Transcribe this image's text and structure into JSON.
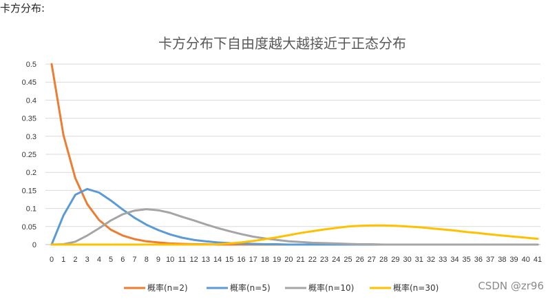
{
  "page": {
    "heading": "卡方分布:",
    "watermark": "CSDN @zr96"
  },
  "chart_data": {
    "type": "line",
    "title": "卡方分布下自由度越大越接近于正态分布",
    "xlabel": "",
    "ylabel": "",
    "x": [
      0,
      1,
      2,
      3,
      4,
      5,
      6,
      7,
      8,
      9,
      10,
      11,
      12,
      13,
      14,
      15,
      16,
      17,
      18,
      19,
      20,
      21,
      22,
      23,
      24,
      25,
      26,
      27,
      28,
      29,
      30,
      31,
      32,
      33,
      34,
      35,
      36,
      37,
      38,
      39,
      40,
      41
    ],
    "ylim": [
      0,
      0.5
    ],
    "yticks": [
      "0",
      "0.05",
      "0.1",
      "0.15",
      "0.2",
      "0.25",
      "0.3",
      "0.35",
      "0.4",
      "0.45",
      "0.5"
    ],
    "grid": true,
    "legend_position": "bottom",
    "series": [
      {
        "name": "概率(n=2)",
        "color": "#ED7D31",
        "values": [
          0.5,
          0.303,
          0.184,
          0.112,
          0.068,
          0.041,
          0.025,
          0.015,
          0.009,
          0.006,
          0.003,
          0.002,
          0.001,
          0.001,
          0,
          0,
          0,
          0,
          0,
          0,
          0,
          0,
          0,
          0,
          0,
          0,
          0,
          0,
          0,
          0,
          0,
          0,
          0,
          0,
          0,
          0,
          0,
          0,
          0,
          0,
          0,
          0
        ]
      },
      {
        "name": "概率(n=5)",
        "color": "#5B9BD5",
        "values": [
          0,
          0.081,
          0.138,
          0.154,
          0.144,
          0.122,
          0.097,
          0.074,
          0.055,
          0.04,
          0.028,
          0.019,
          0.013,
          0.009,
          0.006,
          0.004,
          0.003,
          0.002,
          0.001,
          0.001,
          0,
          0,
          0,
          0,
          0,
          0,
          0,
          0,
          0,
          0,
          0,
          0,
          0,
          0,
          0,
          0,
          0,
          0,
          0,
          0,
          0,
          0
        ]
      },
      {
        "name": "概率(n=10)",
        "color": "#A5A5A5",
        "values": [
          0,
          0.001,
          0.008,
          0.025,
          0.045,
          0.067,
          0.084,
          0.094,
          0.098,
          0.095,
          0.088,
          0.077,
          0.067,
          0.056,
          0.046,
          0.037,
          0.029,
          0.022,
          0.017,
          0.013,
          0.009,
          0.007,
          0.005,
          0.004,
          0.003,
          0.002,
          0.001,
          0.001,
          0,
          0,
          0,
          0,
          0,
          0,
          0,
          0,
          0,
          0,
          0,
          0,
          0,
          0
        ]
      },
      {
        "name": "概率(n=30)",
        "color": "#FFC000",
        "values": [
          0,
          0,
          0,
          0,
          0,
          0,
          0,
          0,
          0,
          0,
          0,
          0,
          0,
          0,
          0.001,
          0.003,
          0.006,
          0.01,
          0.015,
          0.02,
          0.026,
          0.032,
          0.037,
          0.042,
          0.046,
          0.05,
          0.052,
          0.053,
          0.053,
          0.052,
          0.05,
          0.048,
          0.045,
          0.042,
          0.039,
          0.035,
          0.032,
          0.028,
          0.025,
          0.022,
          0.019,
          0.016
        ]
      }
    ]
  }
}
